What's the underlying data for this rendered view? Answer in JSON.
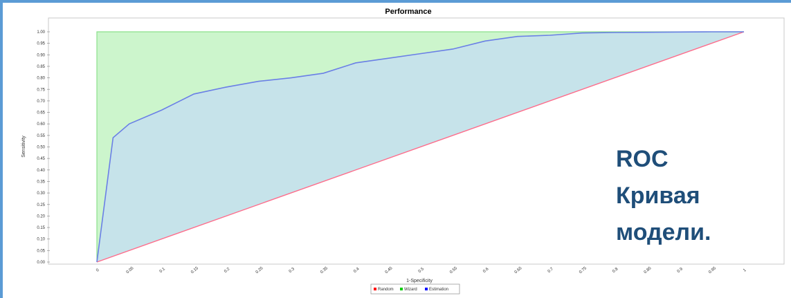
{
  "chart_data": {
    "type": "area",
    "title": "Performance",
    "xlabel": "1-Specificity",
    "ylabel": "Sensitivity",
    "xlim": [
      0,
      1
    ],
    "ylim": [
      0,
      1
    ],
    "x_ticks": [
      "0",
      "0.05",
      "0.1",
      "0.15",
      "0.2",
      "0.25",
      "0.3",
      "0.35",
      "0.4",
      "0.45",
      "0.5",
      "0.55",
      "0.6",
      "0.65",
      "0.7",
      "0.75",
      "0.8",
      "0.85",
      "0.9",
      "0.95",
      "1"
    ],
    "y_ticks": [
      "0.00",
      "0.05",
      "0.10",
      "0.15",
      "0.20",
      "0.25",
      "0.30",
      "0.35",
      "0.40",
      "0.45",
      "0.50",
      "0.55",
      "0.60",
      "0.65",
      "0.70",
      "0.75",
      "0.80",
      "0.85",
      "0.90",
      "0.95",
      "1.00"
    ],
    "grid": false,
    "legend_position": "bottom-center",
    "series": [
      {
        "name": "Random",
        "color": "#ff0000",
        "points": [
          [
            0,
            0
          ],
          [
            1,
            1
          ]
        ]
      },
      {
        "name": "Wizard",
        "color": "#00cc00",
        "points": [
          [
            0,
            0
          ],
          [
            0,
            1
          ],
          [
            1,
            1
          ]
        ]
      },
      {
        "name": "Estimation",
        "color": "#0000ff",
        "points": [
          [
            0,
            0
          ],
          [
            0.025,
            0.54
          ],
          [
            0.05,
            0.6
          ],
          [
            0.1,
            0.66
          ],
          [
            0.15,
            0.73
          ],
          [
            0.2,
            0.76
          ],
          [
            0.25,
            0.785
          ],
          [
            0.3,
            0.8
          ],
          [
            0.35,
            0.82
          ],
          [
            0.4,
            0.865
          ],
          [
            0.45,
            0.885
          ],
          [
            0.5,
            0.905
          ],
          [
            0.55,
            0.925
          ],
          [
            0.6,
            0.96
          ],
          [
            0.65,
            0.98
          ],
          [
            0.7,
            0.985
          ],
          [
            0.75,
            0.995
          ],
          [
            0.8,
            0.997
          ],
          [
            0.85,
            0.998
          ],
          [
            0.9,
            0.999
          ],
          [
            0.95,
            1.0
          ],
          [
            1,
            1
          ]
        ]
      }
    ],
    "fill_colors": {
      "wizard_area": "#ccf5cc",
      "estimation_area": "#c6e3ea"
    }
  },
  "overlay_text": [
    "ROC",
    "Кривая",
    "модели."
  ]
}
